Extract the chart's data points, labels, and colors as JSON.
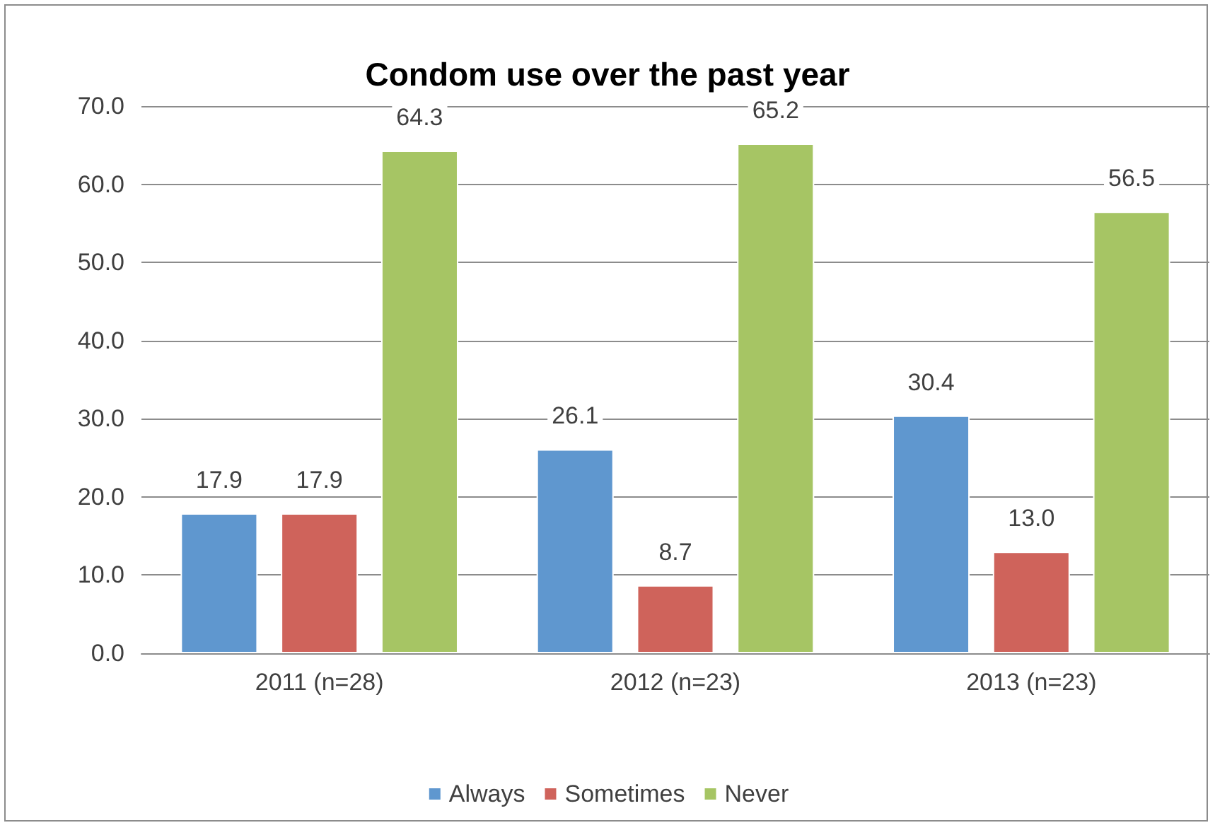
{
  "chart_data": {
    "type": "bar",
    "title": "Condom use over the past year",
    "categories": [
      "2011 (n=28)",
      "2012 (n=23)",
      "2013 (n=23)"
    ],
    "series": [
      {
        "name": "Always",
        "color": "#5f97cf",
        "values": [
          17.9,
          26.1,
          30.4
        ],
        "value_labels": [
          "17.9",
          "26.1",
          "30.4"
        ]
      },
      {
        "name": "Sometimes",
        "color": "#cf635b",
        "values": [
          17.9,
          8.7,
          13.0
        ],
        "value_labels": [
          "17.9",
          "8.7",
          "13.0"
        ]
      },
      {
        "name": "Never",
        "color": "#a6c564",
        "values": [
          64.3,
          65.2,
          56.5
        ],
        "value_labels": [
          "64.3",
          "65.2",
          "56.5"
        ]
      }
    ],
    "ylim": [
      0,
      70
    ],
    "yticks": [
      {
        "value": 0,
        "label": "0.0"
      },
      {
        "value": 10,
        "label": "10.0"
      },
      {
        "value": 20,
        "label": "20.0"
      },
      {
        "value": 30,
        "label": "30.0"
      },
      {
        "value": 40,
        "label": "40.0"
      },
      {
        "value": 50,
        "label": "50.0"
      },
      {
        "value": 60,
        "label": "60.0"
      },
      {
        "value": 70,
        "label": "70.0"
      }
    ],
    "grid": "y",
    "legend": "bottom"
  }
}
